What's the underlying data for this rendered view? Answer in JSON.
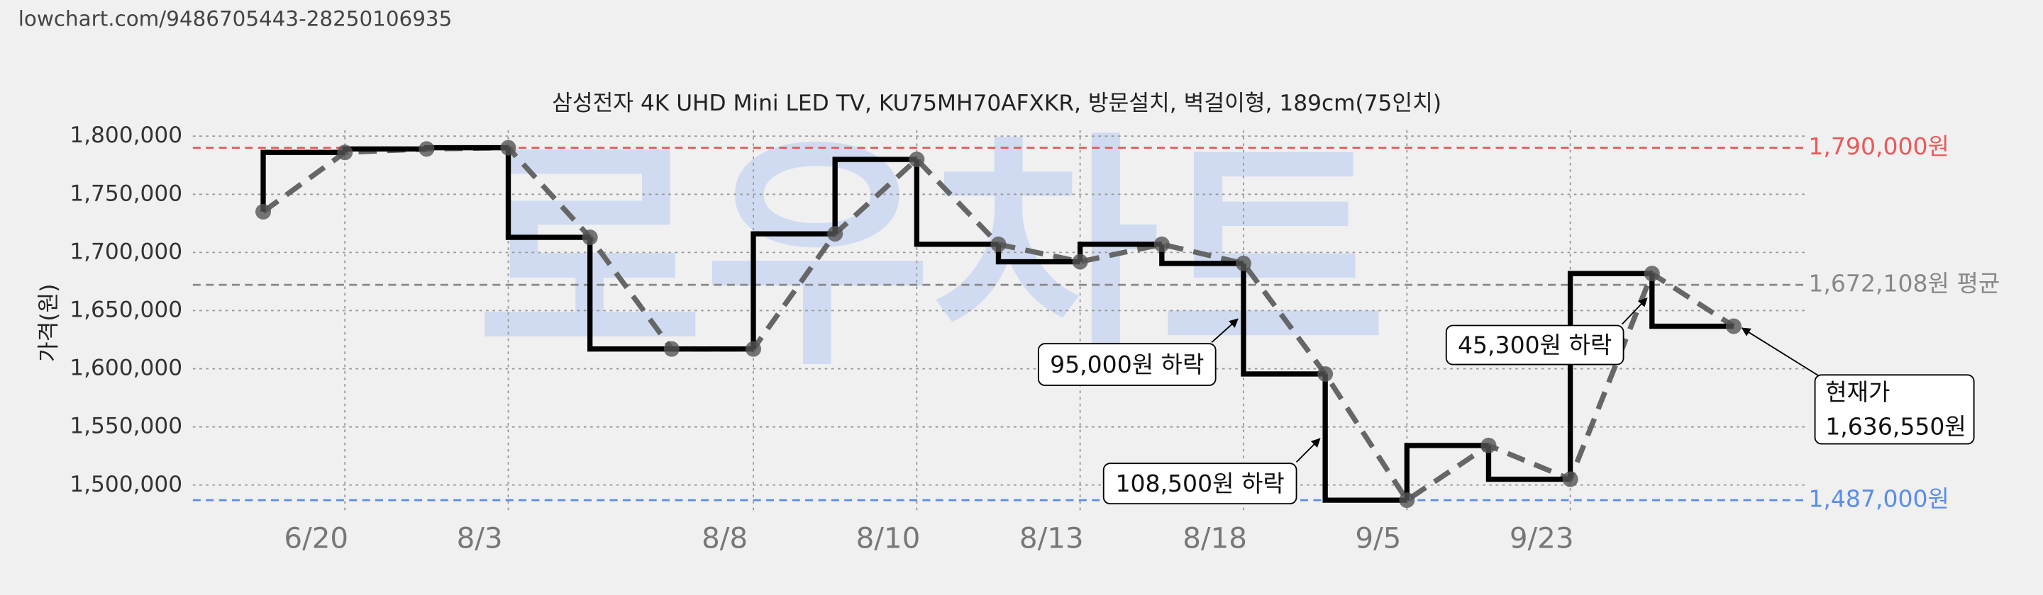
{
  "url": "lowchart.com/9486705443-28250106935",
  "chart_data": {
    "type": "line",
    "title": "삼성전자 4K UHD Mini LED TV, KU75MH70AFXKR, 방문설치, 벽걸이형, 189cm(75인치)",
    "y_label": "가격(원)",
    "watermark": "로우차트",
    "categories": [
      null,
      "6/20",
      null,
      "8/3",
      null,
      null,
      "8/8",
      null,
      "8/10",
      null,
      "8/13",
      null,
      "8/18",
      null,
      "9/5",
      null,
      "9/23",
      null,
      null
    ],
    "series": [
      {
        "color": "#000000",
        "values": [
          1735000,
          1786000,
          1789000,
          1790000,
          1713000,
          1617000,
          1617000,
          1716000,
          1780000,
          1707000,
          1692000,
          1707000,
          1690500,
          1595500,
          1487000,
          1534000,
          1505000,
          1681850,
          1636550
        ]
      }
    ],
    "ylim": [
      1475000,
      1805000
    ],
    "yticks": [
      {
        "value": 1500000,
        "label": "1,500,000"
      },
      {
        "value": 1550000,
        "label": "1,550,000"
      },
      {
        "value": 1600000,
        "label": "1,600,000"
      },
      {
        "value": 1650000,
        "label": "1,650,000"
      },
      {
        "value": 1700000,
        "label": "1,700,000"
      },
      {
        "value": 1750000,
        "label": "1,750,000"
      },
      {
        "value": 1800000,
        "label": "1,800,000"
      }
    ],
    "grid": true,
    "reference_lines": [
      {
        "value": 1790000,
        "label": "1,790,000원",
        "color": "#e85a5a"
      },
      {
        "value": 1672108,
        "label": "1,672,108원 평균",
        "color": "#888888"
      },
      {
        "value": 1487000,
        "label": "1,487,000원",
        "color": "#5b8de8"
      }
    ],
    "annotations": [
      {
        "lines": [
          "95,000원 하락"
        ]
      },
      {
        "lines": [
          "108,500원 하락"
        ]
      },
      {
        "lines": [
          "45,300원 하락"
        ]
      },
      {
        "lines": [
          "현재가",
          "1,636,550원"
        ]
      }
    ]
  }
}
